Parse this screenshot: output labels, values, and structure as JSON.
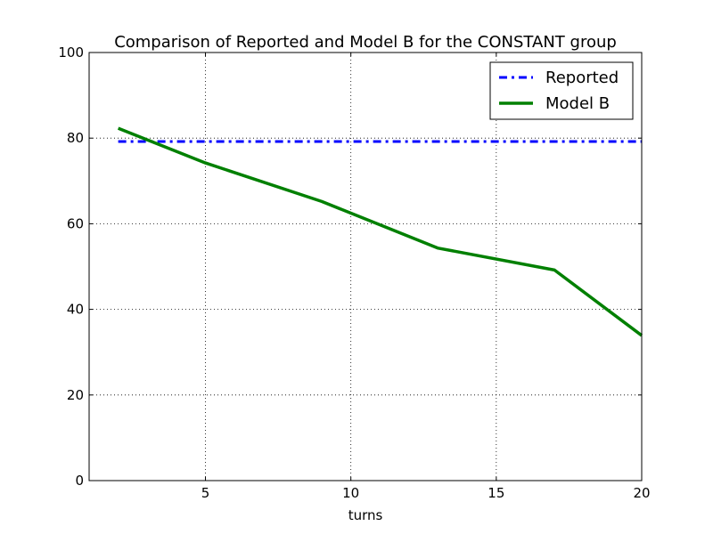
{
  "chart_data": {
    "type": "line",
    "title": "Comparison of Reported and Model B for the CONSTANT group",
    "xlabel": "turns",
    "ylabel": "",
    "xlim": [
      1,
      20
    ],
    "ylim": [
      0,
      100
    ],
    "xticks": [
      5,
      10,
      15,
      20
    ],
    "yticks": [
      0,
      20,
      40,
      60,
      80,
      100
    ],
    "grid": true,
    "legend_position": "top-right",
    "series": [
      {
        "name": "Reported",
        "color": "#0000ff",
        "style": "dash-dot",
        "x": [
          2,
          20
        ],
        "y": [
          79.2,
          79.2
        ]
      },
      {
        "name": "Model B",
        "color": "#008000",
        "style": "solid",
        "x": [
          2,
          5,
          9,
          13,
          17,
          20
        ],
        "y": [
          82.3,
          74.2,
          65.2,
          54.3,
          49.2,
          33.9
        ]
      }
    ]
  }
}
